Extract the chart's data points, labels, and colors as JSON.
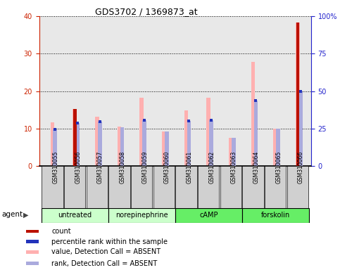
{
  "title": "GDS3702 / 1369873_at",
  "samples": [
    "GSM310055",
    "GSM310056",
    "GSM310057",
    "GSM310058",
    "GSM310059",
    "GSM310060",
    "GSM310061",
    "GSM310062",
    "GSM310063",
    "GSM310064",
    "GSM310065",
    "GSM310066"
  ],
  "value_absent": [
    11.7,
    15.2,
    13.1,
    10.5,
    18.3,
    9.2,
    14.8,
    18.3,
    7.5,
    27.8,
    10.0,
    38.3
  ],
  "rank_absent": [
    9.8,
    11.5,
    11.8,
    10.4,
    12.2,
    9.2,
    12.0,
    12.2,
    7.5,
    17.5,
    9.9,
    20.0
  ],
  "count_red": [
    0,
    15.2,
    0,
    0,
    0,
    0,
    0,
    0,
    0,
    0,
    0,
    38.3
  ],
  "pct_rank_blue": [
    9.8,
    11.5,
    11.8,
    0,
    12.2,
    0,
    12.0,
    12.2,
    0,
    17.5,
    0,
    20.0
  ],
  "groups": [
    {
      "label": "untreated",
      "start": 0,
      "end": 3,
      "light": true
    },
    {
      "label": "norepinephrine",
      "start": 3,
      "end": 6,
      "light": true
    },
    {
      "label": "cAMP",
      "start": 6,
      "end": 9,
      "light": false
    },
    {
      "label": "forskolin",
      "start": 9,
      "end": 12,
      "light": false
    }
  ],
  "ylim_left": [
    0,
    40
  ],
  "ylim_right": [
    0,
    100
  ],
  "yticks_left": [
    0,
    10,
    20,
    30,
    40
  ],
  "yticks_right": [
    0,
    25,
    50,
    75,
    100
  ],
  "yticklabels_right": [
    "0",
    "25",
    "50",
    "75",
    "100%"
  ],
  "color_red": "#bb1100",
  "color_pink": "#ffb0b0",
  "color_blue_dark": "#2233bb",
  "color_blue_light": "#aaaadd",
  "bar_width": 0.18,
  "background_plot": "#e8e8e8",
  "background_fig": "#ffffff",
  "left_axis_color": "#cc2200",
  "right_axis_color": "#2222cc",
  "light_green": "#ccffcc",
  "mid_green": "#66ee66",
  "legend_items": [
    {
      "color": "#bb1100",
      "label": "count"
    },
    {
      "color": "#2233bb",
      "label": "percentile rank within the sample"
    },
    {
      "color": "#ffb0b0",
      "label": "value, Detection Call = ABSENT"
    },
    {
      "color": "#aaaadd",
      "label": "rank, Detection Call = ABSENT"
    }
  ]
}
